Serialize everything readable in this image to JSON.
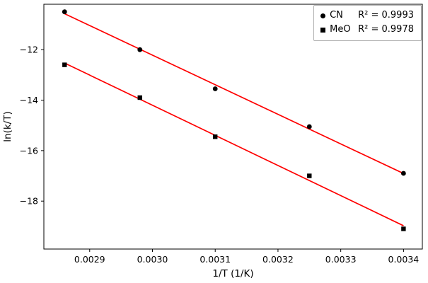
{
  "chart_data": {
    "type": "scatter",
    "title": "",
    "xlabel": "1/T (1/K)",
    "ylabel": "ln(k/T)",
    "xlim": [
      0.002827,
      0.00343
    ],
    "ylim": [
      -19.9,
      -10.2
    ],
    "x_ticks": [
      0.0029,
      0.003,
      0.0031,
      0.0032,
      0.0033,
      0.0034
    ],
    "x_tick_labels": [
      "0.0029",
      "0.0030",
      "0.0031",
      "0.0032",
      "0.0033",
      "0.0034"
    ],
    "y_ticks": [
      -12,
      -14,
      -16,
      -18
    ],
    "y_tick_labels": [
      "−12",
      "−14",
      "−16",
      "−18"
    ],
    "grid": false,
    "legend_position": "upper right",
    "fit_line_color": "#ff0000",
    "marker_color": "#000000",
    "series": [
      {
        "name": "CN",
        "marker": "circle",
        "r2_label": "R² = 0.9993",
        "x": [
          0.00286,
          0.00298,
          0.0031,
          0.00325,
          0.0034
        ],
        "y": [
          -10.5,
          -12.0,
          -13.55,
          -15.05,
          -16.9
        ]
      },
      {
        "name": "MeO",
        "marker": "square",
        "r2_label": "R² = 0.9978",
        "x": [
          0.00286,
          0.00298,
          0.0031,
          0.00325,
          0.0034
        ],
        "y": [
          -12.6,
          -13.9,
          -15.45,
          -17.0,
          -19.1
        ]
      }
    ]
  }
}
